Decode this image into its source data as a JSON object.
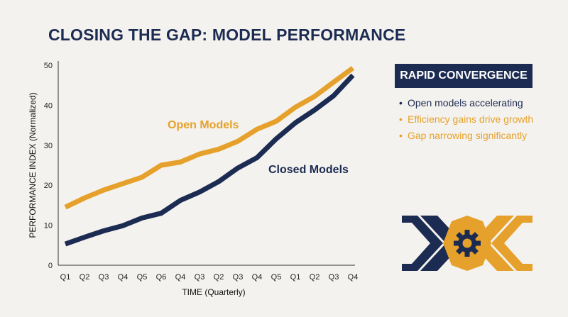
{
  "title": "CLOSING THE GAP: MODEL PERFORMANCE",
  "colors": {
    "open": "#e5a12b",
    "closed": "#1c2b52",
    "background": "#f4f2ee",
    "text": "#1c2b52"
  },
  "panel": {
    "title": "RAPID CONVERGENCE",
    "bullets": [
      {
        "text": "Open models accelerating",
        "color": "#1c2b52"
      },
      {
        "text": "Efficiency gains drive growth",
        "color": "#e5a12b"
      },
      {
        "text": "Gap narrowing significantly",
        "color": "#e5a12b"
      }
    ],
    "graphic_icon": "gear-icon"
  },
  "chart_data": {
    "type": "line",
    "xlabel": "TIME (Quarterly)",
    "ylabel": "PERFORMANCE INDEX (Normalized)",
    "ylim": [
      0,
      50
    ],
    "yticks": [
      0,
      10,
      20,
      30,
      40,
      50
    ],
    "categories": [
      "Q1",
      "Q2",
      "Q3",
      "Q4",
      "Q5",
      "Q6",
      "Q4",
      "Q3",
      "Q2",
      "Q3",
      "Q4",
      "Q5",
      "Q1",
      "Q2",
      "Q3",
      "Q4"
    ],
    "grid": false,
    "series": [
      {
        "name": "Open Models",
        "color": "#e5a12b",
        "values": [
          14.5,
          16.8,
          18.8,
          20.4,
          22,
          25,
          25.8,
          27.8,
          29,
          31,
          34,
          36,
          39.5,
          42.2,
          45.8,
          49.3
        ]
      },
      {
        "name": "Closed Models",
        "color": "#1c2b52",
        "values": [
          5.3,
          7,
          8.6,
          9.9,
          11.8,
          13,
          16.2,
          18.3,
          20.9,
          24.3,
          26.9,
          31.6,
          35.6,
          38.8,
          42.4,
          47.5
        ]
      }
    ]
  }
}
